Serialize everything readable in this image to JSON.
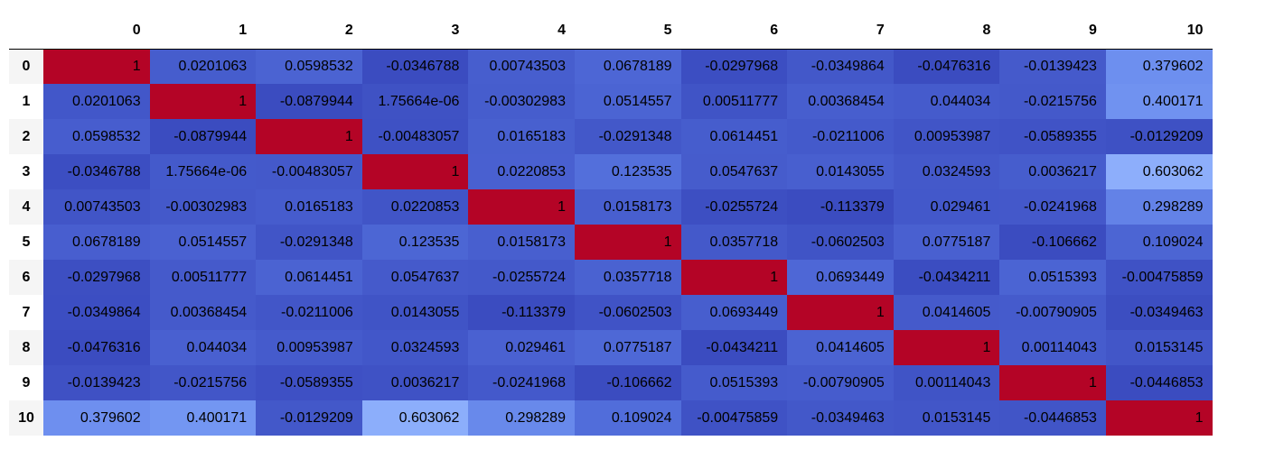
{
  "chart_data": {
    "type": "heatmap",
    "colormap": "coolwarm",
    "columns": [
      "0",
      "1",
      "2",
      "3",
      "4",
      "5",
      "6",
      "7",
      "8",
      "9",
      "10"
    ],
    "rows": [
      "0",
      "1",
      "2",
      "3",
      "4",
      "5",
      "6",
      "7",
      "8",
      "9",
      "10"
    ],
    "values": [
      [
        "1",
        "0.0201063",
        "0.0598532",
        "-0.0346788",
        "0.00743503",
        "0.0678189",
        "-0.0297968",
        "-0.0349864",
        "-0.0476316",
        "-0.0139423",
        "0.379602"
      ],
      [
        "0.0201063",
        "1",
        "-0.0879944",
        "1.75664e-06",
        "-0.00302983",
        "0.0514557",
        "0.00511777",
        "0.00368454",
        "0.044034",
        "-0.0215756",
        "0.400171"
      ],
      [
        "0.0598532",
        "-0.0879944",
        "1",
        "-0.00483057",
        "0.0165183",
        "-0.0291348",
        "0.0614451",
        "-0.0211006",
        "0.00953987",
        "-0.0589355",
        "-0.0129209"
      ],
      [
        "-0.0346788",
        "1.75664e-06",
        "-0.00483057",
        "1",
        "0.0220853",
        "0.123535",
        "0.0547637",
        "0.0143055",
        "0.0324593",
        "0.0036217",
        "0.603062"
      ],
      [
        "0.00743503",
        "-0.00302983",
        "0.0165183",
        "0.0220853",
        "1",
        "0.0158173",
        "-0.0255724",
        "-0.113379",
        "0.029461",
        "-0.0241968",
        "0.298289"
      ],
      [
        "0.0678189",
        "0.0514557",
        "-0.0291348",
        "0.123535",
        "0.0158173",
        "1",
        "0.0357718",
        "-0.0602503",
        "0.0775187",
        "-0.106662",
        "0.109024"
      ],
      [
        "-0.0297968",
        "0.00511777",
        "0.0614451",
        "0.0547637",
        "-0.0255724",
        "0.0357718",
        "1",
        "0.0693449",
        "-0.0434211",
        "0.0515393",
        "-0.00475859"
      ],
      [
        "-0.0349864",
        "0.00368454",
        "-0.0211006",
        "0.0143055",
        "-0.113379",
        "-0.0602503",
        "0.0693449",
        "1",
        "0.0414605",
        "-0.00790905",
        "-0.0349463"
      ],
      [
        "-0.0476316",
        "0.044034",
        "0.00953987",
        "0.0324593",
        "0.029461",
        "0.0775187",
        "-0.0434211",
        "0.0414605",
        "1",
        "0.00114043",
        "0.0153145"
      ],
      [
        "-0.0139423",
        "-0.0215756",
        "-0.0589355",
        "0.0036217",
        "-0.0241968",
        "-0.106662",
        "0.0515393",
        "-0.00790905",
        "0.00114043",
        "1",
        "-0.0446853"
      ],
      [
        "0.379602",
        "0.400171",
        "-0.0129209",
        "0.603062",
        "0.298289",
        "0.109024",
        "-0.00475859",
        "-0.0349463",
        "0.0153145",
        "-0.0446853",
        "1"
      ]
    ]
  }
}
